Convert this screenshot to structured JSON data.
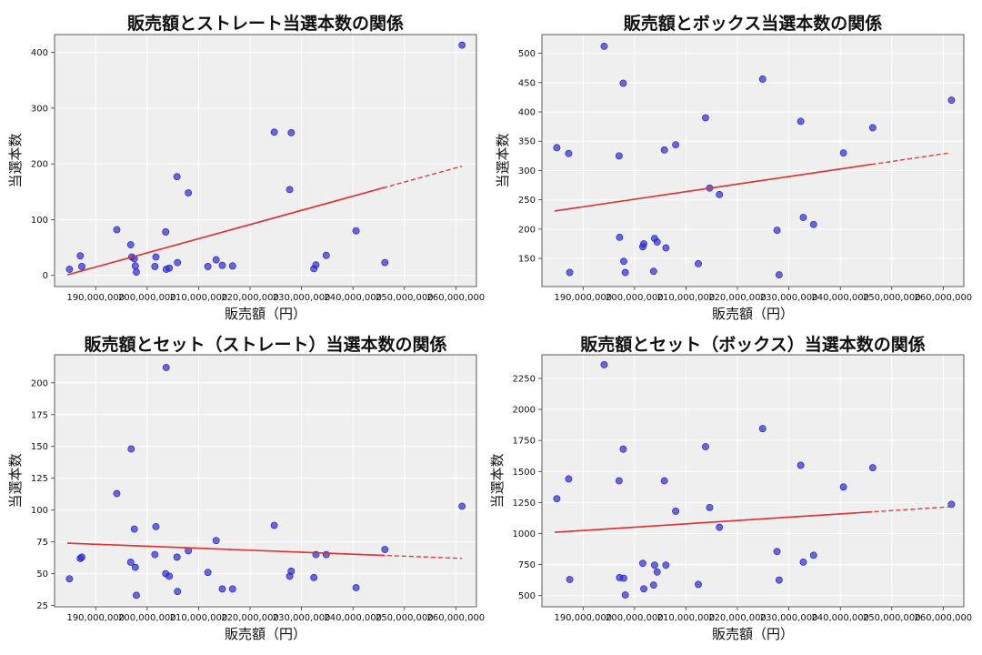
{
  "chart_data": [
    {
      "type": "scatter",
      "title": "販売額とストレート当選本数の関係",
      "xlabel": "販売額（円）",
      "ylabel": "当選本数",
      "xlim": [
        182000000,
        264000000
      ],
      "ylim": [
        -20,
        432
      ],
      "xticks": [
        190000000,
        200000000,
        210000000,
        220000000,
        230000000,
        240000000,
        250000000,
        260000000
      ],
      "xtick_labels": [
        "190,000,000",
        "200,000,000",
        "210,000,000",
        "220,000,000",
        "230,000,000",
        "240,000,000",
        "250,000,000",
        "260,000,000"
      ],
      "yticks": [
        0,
        100,
        200,
        300,
        400
      ],
      "ytick_labels": [
        "0",
        "100",
        "200",
        "300",
        "400"
      ],
      "points": [
        [
          184900000,
          11
        ],
        [
          187000000,
          35
        ],
        [
          187300000,
          16
        ],
        [
          194100000,
          82
        ],
        [
          196800000,
          55
        ],
        [
          197000000,
          33
        ],
        [
          197500000,
          30
        ],
        [
          197700000,
          17
        ],
        [
          197900000,
          6
        ],
        [
          201500000,
          16
        ],
        [
          201700000,
          33
        ],
        [
          203600000,
          78
        ],
        [
          203700000,
          11
        ],
        [
          204300000,
          13
        ],
        [
          205800000,
          177
        ],
        [
          205900000,
          23
        ],
        [
          208000000,
          148
        ],
        [
          211800000,
          16
        ],
        [
          213400000,
          28
        ],
        [
          214600000,
          18
        ],
        [
          216600000,
          17
        ],
        [
          224700000,
          257
        ],
        [
          227700000,
          154
        ],
        [
          228000000,
          256
        ],
        [
          232400000,
          12
        ],
        [
          232800000,
          19
        ],
        [
          234800000,
          36
        ],
        [
          240600000,
          80
        ],
        [
          246200000,
          23
        ],
        [
          261200000,
          413
        ]
      ],
      "trend": {
        "x1": 184500000,
        "y1": 1,
        "x2": 261200000,
        "y2": 196,
        "solid_end": 246200000
      },
      "point_color": "#3030e0",
      "trend_color": "#e03030"
    },
    {
      "type": "scatter",
      "title": "販売額とボックス当選本数の関係",
      "xlabel": "販売額（円）",
      "ylabel": "当選本数",
      "xlim": [
        182000000,
        264000000
      ],
      "ylim": [
        102,
        532
      ],
      "xticks": [
        190000000,
        200000000,
        210000000,
        220000000,
        230000000,
        240000000,
        250000000,
        260000000
      ],
      "xtick_labels": [
        "190,000,000",
        "200,000,000",
        "210,000,000",
        "220,000,000",
        "230,000,000",
        "240,000,000",
        "250,000,000",
        "260,000,000"
      ],
      "yticks": [
        150,
        200,
        250,
        300,
        350,
        400,
        450,
        500
      ],
      "ytick_labels": [
        "150",
        "200",
        "250",
        "300",
        "350",
        "400",
        "450",
        "500"
      ],
      "points": [
        [
          184900000,
          339
        ],
        [
          187200000,
          329
        ],
        [
          187400000,
          126
        ],
        [
          194100000,
          512
        ],
        [
          197000000,
          325
        ],
        [
          197100000,
          186
        ],
        [
          197800000,
          449
        ],
        [
          197900000,
          145
        ],
        [
          198200000,
          126
        ],
        [
          201600000,
          170
        ],
        [
          201800000,
          175
        ],
        [
          203700000,
          128
        ],
        [
          203900000,
          184
        ],
        [
          204400000,
          178
        ],
        [
          205800000,
          335
        ],
        [
          206100000,
          168
        ],
        [
          208000000,
          344
        ],
        [
          212400000,
          141
        ],
        [
          213800000,
          390
        ],
        [
          214600000,
          270
        ],
        [
          216500000,
          259
        ],
        [
          224900000,
          456
        ],
        [
          227700000,
          198
        ],
        [
          228100000,
          122
        ],
        [
          232300000,
          384
        ],
        [
          232800000,
          220
        ],
        [
          234800000,
          208
        ],
        [
          240600000,
          330
        ],
        [
          246300000,
          373
        ],
        [
          261600000,
          420
        ]
      ],
      "trend": {
        "x1": 184500000,
        "y1": 231,
        "x2": 261200000,
        "y2": 330,
        "solid_end": 246200000
      },
      "point_color": "#3030e0",
      "trend_color": "#e03030"
    },
    {
      "type": "scatter",
      "title": "販売額とセット（ストレート）当選本数の関係",
      "xlabel": "販売額（円）",
      "ylabel": "当選本数",
      "xlim": [
        182000000,
        264000000
      ],
      "ylim": [
        24,
        222
      ],
      "xticks": [
        190000000,
        200000000,
        210000000,
        220000000,
        230000000,
        240000000,
        250000000,
        260000000
      ],
      "xtick_labels": [
        "190,000,000",
        "200,000,000",
        "210,000,000",
        "220,000,000",
        "230,000,000",
        "240,000,000",
        "250,000,000",
        "260,000,000"
      ],
      "yticks": [
        25,
        50,
        75,
        100,
        125,
        150,
        175,
        200
      ],
      "ytick_labels": [
        "25",
        "50",
        "75",
        "100",
        "125",
        "150",
        "175",
        "200"
      ],
      "points": [
        [
          184900000,
          46
        ],
        [
          187000000,
          62
        ],
        [
          187300000,
          63
        ],
        [
          194100000,
          113
        ],
        [
          196800000,
          59
        ],
        [
          196900000,
          148
        ],
        [
          197500000,
          85
        ],
        [
          197700000,
          55
        ],
        [
          197900000,
          33
        ],
        [
          201500000,
          65
        ],
        [
          201700000,
          87
        ],
        [
          203600000,
          50
        ],
        [
          203700000,
          212
        ],
        [
          204300000,
          48
        ],
        [
          205800000,
          63
        ],
        [
          205900000,
          36
        ],
        [
          208000000,
          68
        ],
        [
          211800000,
          51
        ],
        [
          213400000,
          76
        ],
        [
          214600000,
          38
        ],
        [
          216600000,
          38
        ],
        [
          224700000,
          88
        ],
        [
          227700000,
          48
        ],
        [
          228000000,
          52
        ],
        [
          232400000,
          47
        ],
        [
          232800000,
          65
        ],
        [
          234800000,
          65
        ],
        [
          240600000,
          39
        ],
        [
          246200000,
          69
        ],
        [
          261200000,
          103
        ]
      ],
      "trend": {
        "x1": 184500000,
        "y1": 74,
        "x2": 261200000,
        "y2": 62,
        "solid_end": 246200000
      },
      "point_color": "#3030e0",
      "trend_color": "#e03030"
    },
    {
      "type": "scatter",
      "title": "販売額とセット（ボックス）当選本数の関係",
      "xlabel": "販売額（円）",
      "ylabel": "当選本数",
      "xlim": [
        182000000,
        264000000
      ],
      "ylim": [
        410,
        2440
      ],
      "xticks": [
        190000000,
        200000000,
        210000000,
        220000000,
        230000000,
        240000000,
        250000000,
        260000000
      ],
      "xtick_labels": [
        "190,000,000",
        "200,000,000",
        "210,000,000",
        "220,000,000",
        "230,000,000",
        "240,000,000",
        "250,000,000",
        "260,000,000"
      ],
      "yticks": [
        500,
        750,
        1000,
        1250,
        1500,
        1750,
        2000,
        2250
      ],
      "ytick_labels": [
        "500",
        "750",
        "1000",
        "1250",
        "1500",
        "1750",
        "2000",
        "2250"
      ],
      "points": [
        [
          184900000,
          1280
        ],
        [
          187200000,
          1440
        ],
        [
          187400000,
          630
        ],
        [
          194100000,
          2360
        ],
        [
          197000000,
          1425
        ],
        [
          197100000,
          645
        ],
        [
          197800000,
          1680
        ],
        [
          197900000,
          640
        ],
        [
          198200000,
          505
        ],
        [
          201600000,
          760
        ],
        [
          201800000,
          555
        ],
        [
          203700000,
          585
        ],
        [
          203900000,
          745
        ],
        [
          204400000,
          690
        ],
        [
          205800000,
          1425
        ],
        [
          206100000,
          745
        ],
        [
          208000000,
          1180
        ],
        [
          212400000,
          590
        ],
        [
          213800000,
          1700
        ],
        [
          214600000,
          1210
        ],
        [
          216500000,
          1050
        ],
        [
          224900000,
          1845
        ],
        [
          227700000,
          855
        ],
        [
          228100000,
          625
        ],
        [
          232300000,
          1550
        ],
        [
          232800000,
          770
        ],
        [
          234800000,
          825
        ],
        [
          240600000,
          1375
        ],
        [
          246300000,
          1530
        ],
        [
          261600000,
          1235
        ]
      ],
      "trend": {
        "x1": 184500000,
        "y1": 1010,
        "x2": 261200000,
        "y2": 1215,
        "solid_end": 246200000
      },
      "point_color": "#3030e0",
      "trend_color": "#e03030"
    }
  ]
}
